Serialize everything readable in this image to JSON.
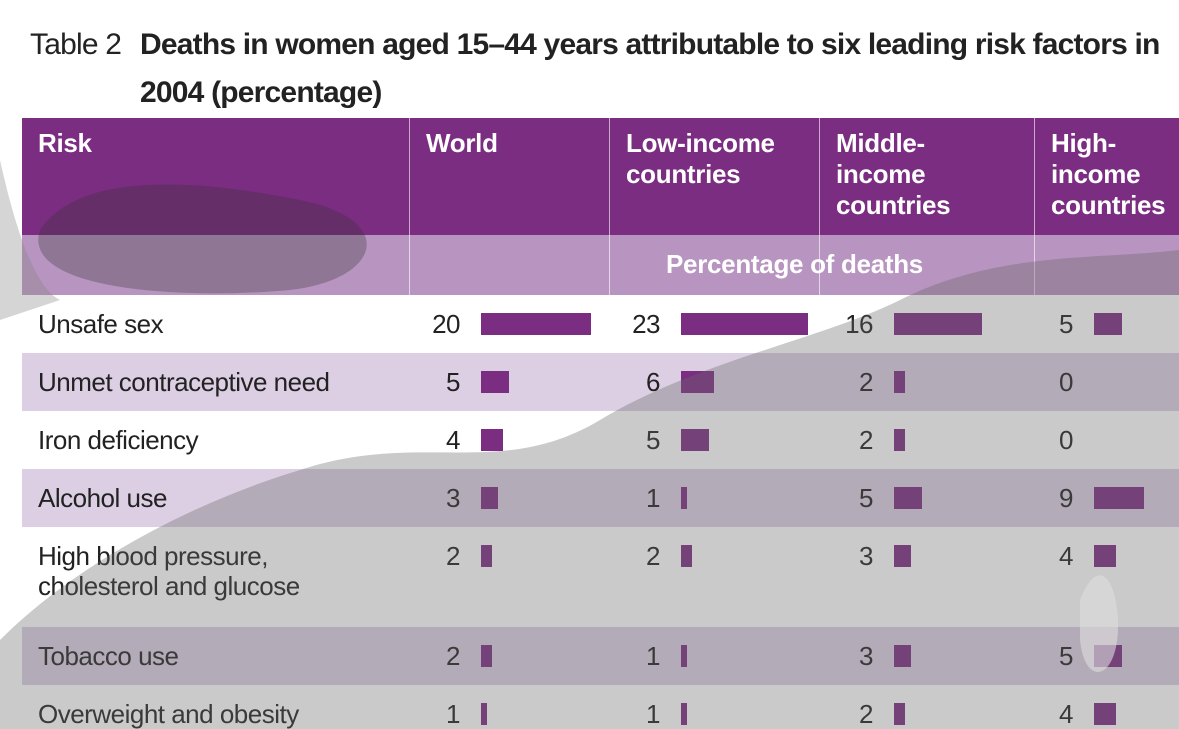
{
  "table": {
    "label": "Table 2",
    "title_lines": [
      "Deaths in women aged 15–44 years attributable to six leading risk factors in",
      "2004 (percentage)"
    ],
    "columns": [
      "Risk",
      "World",
      "Low-income\ncountries",
      "Middle-\nincome\ncountries",
      "High-\nincome\ncountries"
    ],
    "subheader": "Percentage of deaths",
    "bar_color": "#7b2d82",
    "rows": [
      {
        "label": "Unsafe sex",
        "values": [
          20,
          23,
          16,
          5
        ]
      },
      {
        "label": "Unmet contraceptive need",
        "values": [
          5,
          6,
          2,
          0
        ]
      },
      {
        "label": "Iron deficiency",
        "values": [
          4,
          5,
          2,
          0
        ]
      },
      {
        "label": "Alcohol use",
        "values": [
          3,
          1,
          5,
          9
        ]
      },
      {
        "label": "High blood pressure,\ncholesterol and glucose",
        "values": [
          2,
          2,
          3,
          4
        ]
      },
      {
        "label": "Tobacco use",
        "values": [
          2,
          1,
          3,
          5
        ]
      },
      {
        "label": "Overweight and obesity",
        "values": [
          1,
          1,
          2,
          4
        ]
      }
    ]
  }
}
